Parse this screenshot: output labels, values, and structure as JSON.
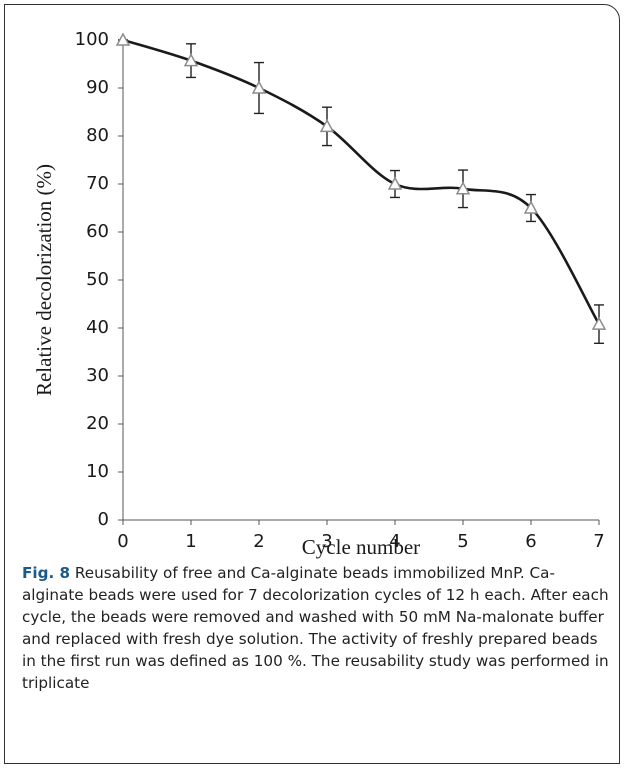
{
  "chart_data": {
    "type": "line",
    "x": [
      0,
      1,
      2,
      3,
      4,
      5,
      6,
      7
    ],
    "series": [
      {
        "color": "#1a1a1a",
        "marker_color": "#8c8c8c",
        "values": [
          100,
          95.7,
          90,
          82,
          70,
          69,
          65,
          40.8
        ],
        "errors": [
          0,
          3.5,
          5.3,
          4,
          2.8,
          3.9,
          2.8,
          4
        ]
      }
    ],
    "xlim": [
      0,
      7
    ],
    "xticks": [
      0,
      1,
      2,
      3,
      4,
      5,
      6,
      7
    ],
    "ylim": [
      0,
      100
    ],
    "yticks": [
      0,
      10,
      20,
      30,
      40,
      50,
      60,
      70,
      80,
      90,
      100
    ],
    "xlabel": "Cycle number",
    "ylabel": "Relative decolorization (%)",
    "grid": false,
    "caption_label": "Fig. 8",
    "caption": "Reusability of free and Ca-alginate beads immobilized MnP. Ca-alginate beads were used for 7 decolorization cycles of 12 h each. After each cycle, the beads were removed and washed with 50 mM Na-malonate buffer and replaced with fresh dye solution. The activity of freshly prepared beads in the first run was defined as 100 %. The reusability study was performed in triplicate"
  }
}
